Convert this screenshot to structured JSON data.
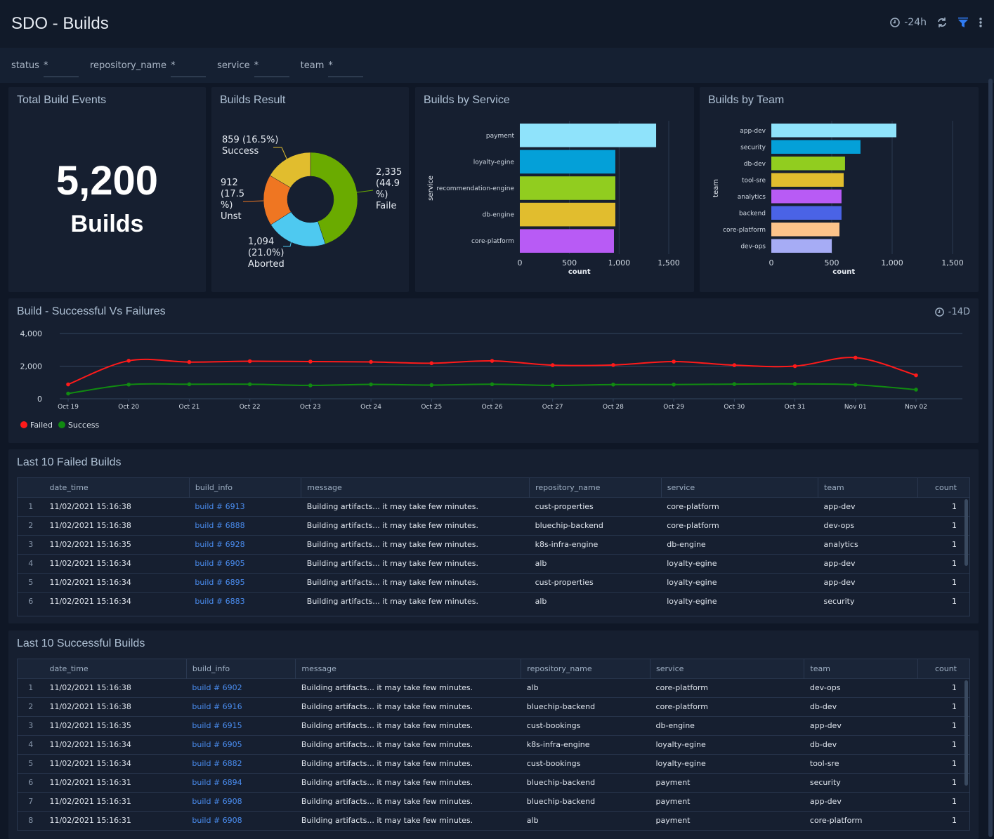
{
  "header": {
    "title": "SDO - Builds",
    "time_range": "-24h",
    "icons": [
      "clock-icon",
      "refresh-icon",
      "filter-icon",
      "more-vertical-icon"
    ],
    "filter_color": "#2f7bf2"
  },
  "filters": [
    {
      "label": "status",
      "value": "*"
    },
    {
      "label": "repository_name",
      "value": "*"
    },
    {
      "label": "service",
      "value": "*"
    },
    {
      "label": "team",
      "value": "*"
    }
  ],
  "total": {
    "title": "Total Build Events",
    "value": "5,200",
    "unit": "Builds"
  },
  "builds_result": {
    "title": "Builds Result",
    "chart_data": {
      "type": "pie",
      "slices": [
        {
          "label": "Faile",
          "value": 2335,
          "pct": "44.9%",
          "text": [
            "2,335",
            "(44.9",
            "%)",
            "Faile"
          ],
          "color": "#6aab00"
        },
        {
          "label": "Aborted",
          "value": 1094,
          "pct": "21.0%",
          "text": [
            "1,094",
            "(21.0%)",
            "Aborted"
          ],
          "color": "#4ec9f0"
        },
        {
          "label": "Unst",
          "value": 912,
          "pct": "17.5%",
          "text": [
            "912",
            "(17.5",
            "%)",
            "Unst"
          ],
          "color": "#ef7622"
        },
        {
          "label": "Success",
          "value": 859,
          "pct": "16.5%",
          "text": [
            "859 (16.5%)",
            "Success"
          ],
          "color": "#e1bd2e"
        }
      ]
    }
  },
  "by_service": {
    "title": "Builds by Service",
    "chart_data": {
      "type": "bar",
      "orientation": "horizontal",
      "ylabel": "service",
      "xlabel": "count",
      "xlim": [
        0,
        1500
      ],
      "ticks": [
        "0",
        "500",
        "1,000",
        "1,500"
      ],
      "categories": [
        "payment",
        "loyalty-egine",
        "recommendation-engine",
        "db-engine",
        "core-platform"
      ],
      "values": [
        1373,
        962,
        962,
        962,
        948
      ],
      "colors": [
        "#8fe3fb",
        "#04a0d8",
        "#91cd1f",
        "#e1bd2e",
        "#b85bf5"
      ]
    }
  },
  "by_team": {
    "title": "Builds by Team",
    "chart_data": {
      "type": "bar",
      "orientation": "horizontal",
      "ylabel": "team",
      "xlabel": "count",
      "xlim": [
        0,
        1500
      ],
      "ticks": [
        "0",
        "500",
        "1,000",
        "1,500"
      ],
      "categories": [
        "app-dev",
        "security",
        "db-dev",
        "tool-sre",
        "analytics",
        "backend",
        "core-platform",
        "dev-ops"
      ],
      "values": [
        1035,
        738,
        610,
        599,
        581,
        581,
        564,
        500
      ],
      "colors": [
        "#8fe3fb",
        "#04a0d8",
        "#91cd1f",
        "#e1bd2e",
        "#b85bf5",
        "#4a63e6",
        "#fcc38a",
        "#a6acf5"
      ]
    }
  },
  "trend": {
    "title": "Build - Successful Vs Failures",
    "time_range": "-14D",
    "chart_data": {
      "type": "line",
      "ylim": [
        0,
        4000
      ],
      "yticks": [
        "0",
        "2,000",
        "4,000"
      ],
      "x": [
        "Oct 19",
        "Oct 20",
        "Oct 21",
        "Oct 22",
        "Oct 23",
        "Oct 24",
        "Oct 25",
        "Oct 26",
        "Oct 27",
        "Oct 28",
        "Oct 29",
        "Oct 30",
        "Oct 31",
        "Nov 01",
        "Nov 02"
      ],
      "legend": "bottom-left",
      "series": [
        {
          "name": "Failed",
          "color": "#ff1a1a",
          "values": [
            880,
            2330,
            2250,
            2300,
            2280,
            2260,
            2180,
            2320,
            2060,
            2070,
            2280,
            2060,
            2000,
            2520,
            1440
          ]
        },
        {
          "name": "Success",
          "color": "#118a11",
          "values": [
            320,
            870,
            890,
            890,
            820,
            880,
            840,
            890,
            820,
            870,
            870,
            900,
            910,
            860,
            560
          ]
        }
      ]
    }
  },
  "failed": {
    "title": "Last 10 Failed Builds",
    "columns": [
      "date_time",
      "build_info",
      "message",
      "repository_name",
      "service",
      "team",
      "count"
    ],
    "rows": [
      [
        "1",
        "11/02/2021 15:16:38",
        "build # 6913",
        "Building artifacts... it may take few minutes.",
        "cust-properties",
        "core-platform",
        "app-dev",
        "1"
      ],
      [
        "2",
        "11/02/2021 15:16:38",
        "build # 6888",
        "Building artifacts... it may take few minutes.",
        "bluechip-backend",
        "core-platform",
        "dev-ops",
        "1"
      ],
      [
        "3",
        "11/02/2021 15:16:35",
        "build # 6928",
        "Building artifacts... it may take few minutes.",
        "k8s-infra-engine",
        "db-engine",
        "analytics",
        "1"
      ],
      [
        "4",
        "11/02/2021 15:16:34",
        "build # 6905",
        "Building artifacts... it may take few minutes.",
        "alb",
        "loyalty-egine",
        "app-dev",
        "1"
      ],
      [
        "5",
        "11/02/2021 15:16:34",
        "build # 6895",
        "Building artifacts... it may take few minutes.",
        "cust-properties",
        "loyalty-egine",
        "app-dev",
        "1"
      ],
      [
        "6",
        "11/02/2021 15:16:34",
        "build # 6883",
        "Building artifacts... it may take few minutes.",
        "alb",
        "loyalty-egine",
        "security",
        "1"
      ]
    ]
  },
  "success": {
    "title": "Last 10 Successful Builds",
    "columns": [
      "date_time",
      "build_info",
      "message",
      "repository_name",
      "service",
      "team",
      "count"
    ],
    "rows": [
      [
        "1",
        "11/02/2021 15:16:38",
        "build # 6902",
        "Building artifacts... it may take few minutes.",
        "alb",
        "core-platform",
        "dev-ops",
        "1"
      ],
      [
        "2",
        "11/02/2021 15:16:38",
        "build # 6916",
        "Building artifacts... it may take few minutes.",
        "bluechip-backend",
        "core-platform",
        "db-dev",
        "1"
      ],
      [
        "3",
        "11/02/2021 15:16:35",
        "build # 6915",
        "Building artifacts... it may take few minutes.",
        "cust-bookings",
        "db-engine",
        "app-dev",
        "1"
      ],
      [
        "4",
        "11/02/2021 15:16:34",
        "build # 6905",
        "Building artifacts... it may take few minutes.",
        "k8s-infra-engine",
        "loyalty-egine",
        "db-dev",
        "1"
      ],
      [
        "5",
        "11/02/2021 15:16:34",
        "build # 6882",
        "Building artifacts... it may take few minutes.",
        "cust-bookings",
        "loyalty-egine",
        "tool-sre",
        "1"
      ],
      [
        "6",
        "11/02/2021 15:16:31",
        "build # 6894",
        "Building artifacts... it may take few minutes.",
        "bluechip-backend",
        "payment",
        "security",
        "1"
      ],
      [
        "7",
        "11/02/2021 15:16:31",
        "build # 6908",
        "Building artifacts... it may take few minutes.",
        "bluechip-backend",
        "payment",
        "app-dev",
        "1"
      ],
      [
        "8",
        "11/02/2021 15:16:31",
        "build # 6908",
        "Building artifacts... it may take few minutes.",
        "alb",
        "payment",
        "core-platform",
        "1"
      ]
    ]
  }
}
